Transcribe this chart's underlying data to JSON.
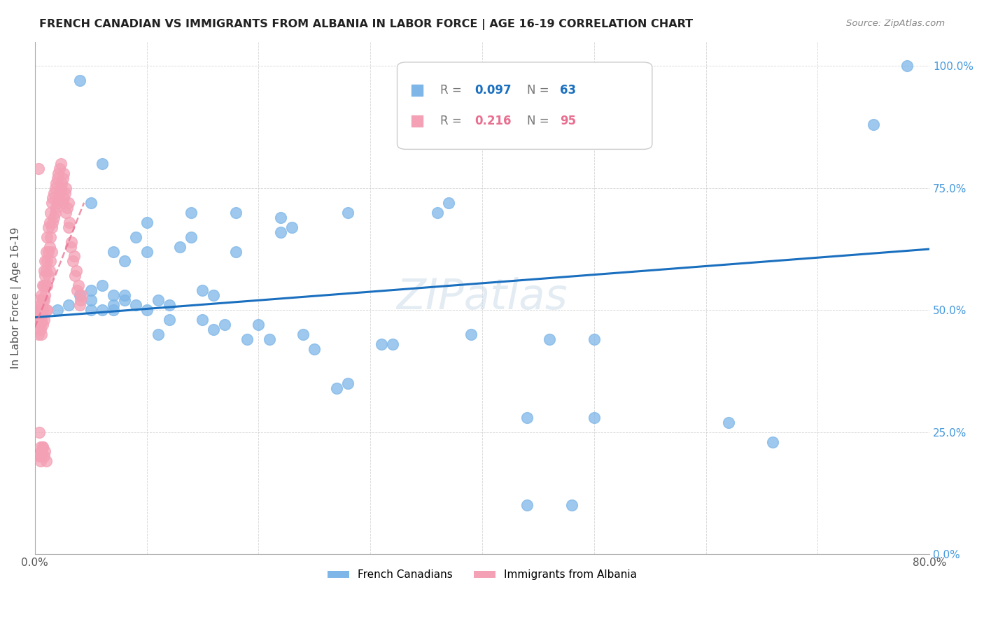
{
  "title": "FRENCH CANADIAN VS IMMIGRANTS FROM ALBANIA IN LABOR FORCE | AGE 16-19 CORRELATION CHART",
  "source": "Source: ZipAtlas.com",
  "ylabel": "In Labor Force | Age 16-19",
  "xlim": [
    0.0,
    0.8
  ],
  "ylim": [
    0.0,
    1.05
  ],
  "blue_R": 0.097,
  "blue_N": 63,
  "pink_R": 0.216,
  "pink_N": 95,
  "blue_color": "#7EB6E8",
  "pink_color": "#F4A0B5",
  "blue_line_color": "#1A6FBF",
  "pink_line_color": "#E87090",
  "watermark": "ZIPatlas",
  "legend1": "French Canadians",
  "legend2": "Immigrants from Albania",
  "blue_scatter_x": [
    0.02,
    0.03,
    0.04,
    0.05,
    0.05,
    0.05,
    0.06,
    0.06,
    0.07,
    0.07,
    0.07,
    0.07,
    0.08,
    0.08,
    0.08,
    0.09,
    0.09,
    0.1,
    0.1,
    0.11,
    0.11,
    0.12,
    0.12,
    0.13,
    0.14,
    0.15,
    0.15,
    0.16,
    0.16,
    0.17,
    0.18,
    0.19,
    0.2,
    0.21,
    0.22,
    0.23,
    0.24,
    0.25,
    0.27,
    0.28,
    0.31,
    0.32,
    0.36,
    0.37,
    0.39,
    0.44,
    0.44,
    0.46,
    0.48,
    0.5,
    0.5,
    0.62,
    0.66,
    0.75,
    0.78,
    0.04,
    0.05,
    0.06,
    0.1,
    0.14,
    0.18,
    0.22,
    0.28
  ],
  "blue_scatter_y": [
    0.5,
    0.51,
    0.53,
    0.52,
    0.5,
    0.54,
    0.5,
    0.55,
    0.5,
    0.51,
    0.53,
    0.62,
    0.52,
    0.53,
    0.6,
    0.51,
    0.65,
    0.5,
    0.62,
    0.52,
    0.45,
    0.51,
    0.48,
    0.63,
    0.65,
    0.54,
    0.48,
    0.53,
    0.46,
    0.47,
    0.62,
    0.44,
    0.47,
    0.44,
    0.66,
    0.67,
    0.45,
    0.42,
    0.34,
    0.35,
    0.43,
    0.43,
    0.7,
    0.72,
    0.45,
    0.1,
    0.28,
    0.44,
    0.1,
    0.28,
    0.44,
    0.27,
    0.23,
    0.88,
    1.0,
    0.97,
    0.72,
    0.8,
    0.68,
    0.7,
    0.7,
    0.69,
    0.7
  ],
  "pink_scatter_x": [
    0.003,
    0.003,
    0.004,
    0.004,
    0.004,
    0.005,
    0.005,
    0.005,
    0.005,
    0.005,
    0.005,
    0.006,
    0.006,
    0.006,
    0.006,
    0.006,
    0.007,
    0.007,
    0.007,
    0.007,
    0.007,
    0.008,
    0.008,
    0.008,
    0.008,
    0.008,
    0.009,
    0.009,
    0.009,
    0.009,
    0.01,
    0.01,
    0.01,
    0.01,
    0.01,
    0.011,
    0.011,
    0.011,
    0.011,
    0.012,
    0.012,
    0.012,
    0.013,
    0.013,
    0.013,
    0.014,
    0.014,
    0.014,
    0.015,
    0.015,
    0.015,
    0.016,
    0.016,
    0.017,
    0.017,
    0.018,
    0.018,
    0.019,
    0.019,
    0.02,
    0.02,
    0.021,
    0.021,
    0.022,
    0.022,
    0.023,
    0.023,
    0.024,
    0.025,
    0.025,
    0.026,
    0.026,
    0.027,
    0.028,
    0.028,
    0.029,
    0.03,
    0.03,
    0.031,
    0.032,
    0.033,
    0.034,
    0.035,
    0.036,
    0.037,
    0.038,
    0.039,
    0.04,
    0.041,
    0.042,
    0.003,
    0.004,
    0.005,
    0.006,
    0.007
  ],
  "pink_scatter_y": [
    0.5,
    0.45,
    0.52,
    0.48,
    0.2,
    0.51,
    0.5,
    0.49,
    0.47,
    0.46,
    0.19,
    0.53,
    0.5,
    0.48,
    0.45,
    0.2,
    0.55,
    0.52,
    0.5,
    0.47,
    0.22,
    0.58,
    0.55,
    0.52,
    0.48,
    0.2,
    0.6,
    0.57,
    0.53,
    0.21,
    0.62,
    0.58,
    0.55,
    0.5,
    0.19,
    0.65,
    0.6,
    0.55,
    0.5,
    0.67,
    0.62,
    0.57,
    0.68,
    0.63,
    0.58,
    0.7,
    0.65,
    0.6,
    0.72,
    0.67,
    0.62,
    0.73,
    0.68,
    0.74,
    0.69,
    0.75,
    0.7,
    0.76,
    0.71,
    0.77,
    0.72,
    0.78,
    0.73,
    0.79,
    0.74,
    0.8,
    0.75,
    0.76,
    0.77,
    0.72,
    0.78,
    0.73,
    0.74,
    0.75,
    0.7,
    0.71,
    0.72,
    0.67,
    0.68,
    0.63,
    0.64,
    0.6,
    0.61,
    0.57,
    0.58,
    0.54,
    0.55,
    0.51,
    0.52,
    0.53,
    0.79,
    0.25,
    0.22,
    0.21,
    0.22
  ]
}
